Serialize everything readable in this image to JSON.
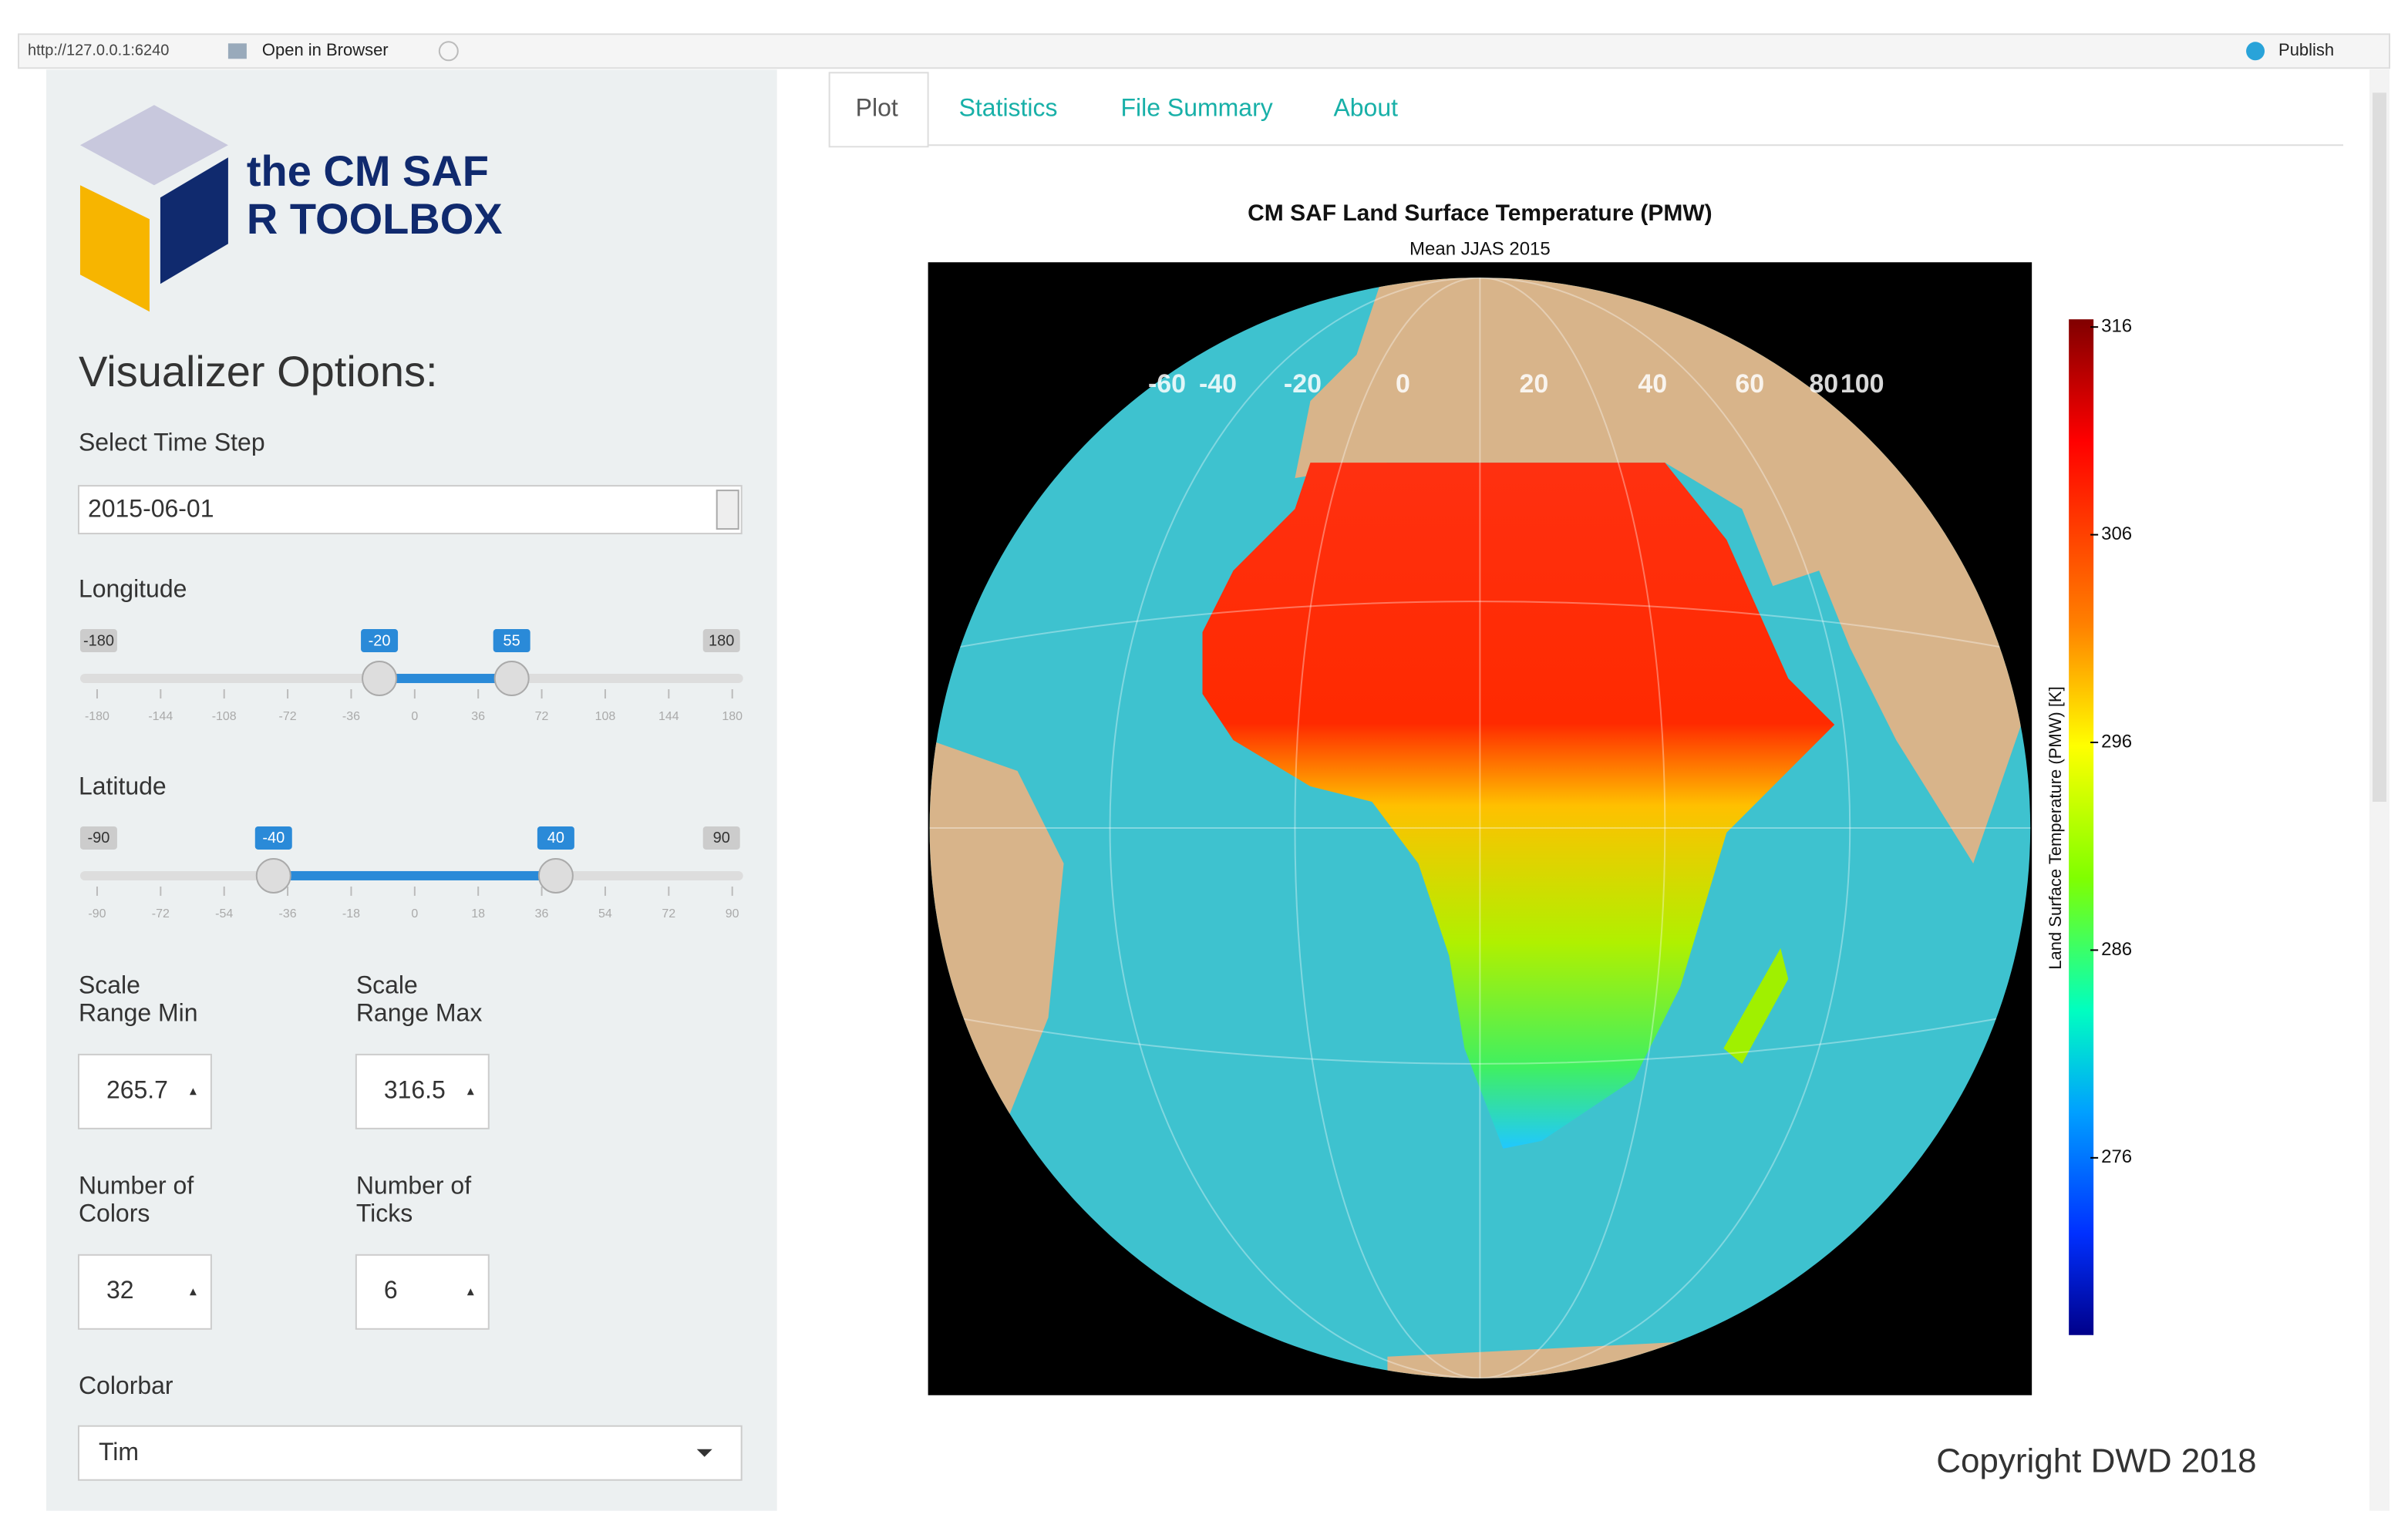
{
  "toolbar": {
    "url": "http://127.0.0.1:6240",
    "open": "Open in Browser",
    "publish": "Publish"
  },
  "logo": {
    "line1": "the CM SAF",
    "line2": "R TOOLBOX"
  },
  "sidebar": {
    "heading": "Visualizer Options:",
    "time_step": {
      "label": "Select Time Step",
      "value": "2015-06-01"
    },
    "longitude": {
      "label": "Longitude",
      "min": -180,
      "max": 180,
      "from": -20,
      "to": 55,
      "ticks": [
        -180,
        -144,
        -108,
        -72,
        -36,
        0,
        36,
        72,
        108,
        144,
        180
      ]
    },
    "latitude": {
      "label": "Latitude",
      "min": -90,
      "max": 90,
      "from": -40,
      "to": 40,
      "ticks": [
        -90,
        -72,
        -54,
        -36,
        -18,
        0,
        18,
        36,
        54,
        72,
        90
      ]
    },
    "scale_min": {
      "label": [
        "Scale",
        "Range Min"
      ],
      "value": "265.7"
    },
    "scale_max": {
      "label": [
        "Scale",
        "Range Max"
      ],
      "value": "316.5"
    },
    "num_colors": {
      "label": [
        "Number of",
        "Colors"
      ],
      "value": 32
    },
    "num_ticks": {
      "label": [
        "Number of",
        "Ticks"
      ],
      "value": 6
    },
    "colorbar": {
      "label": "Colorbar",
      "value": "Tim"
    }
  },
  "tabs": [
    "Plot",
    "Statistics",
    "File Summary",
    "About"
  ],
  "plot": {
    "title": "CM SAF Land Surface Temperature (PMW)",
    "subtitle": "Mean JJAS 2015",
    "lon_labels": [
      -60,
      -40,
      -20,
      0,
      20,
      40,
      60,
      80,
      100
    ],
    "colorbar_ticks": [
      316,
      306,
      296,
      286,
      276
    ],
    "colorbar_label": "Land Surface Temperature (PMW) [K]"
  },
  "copyright": "Copyright DWD 2018"
}
